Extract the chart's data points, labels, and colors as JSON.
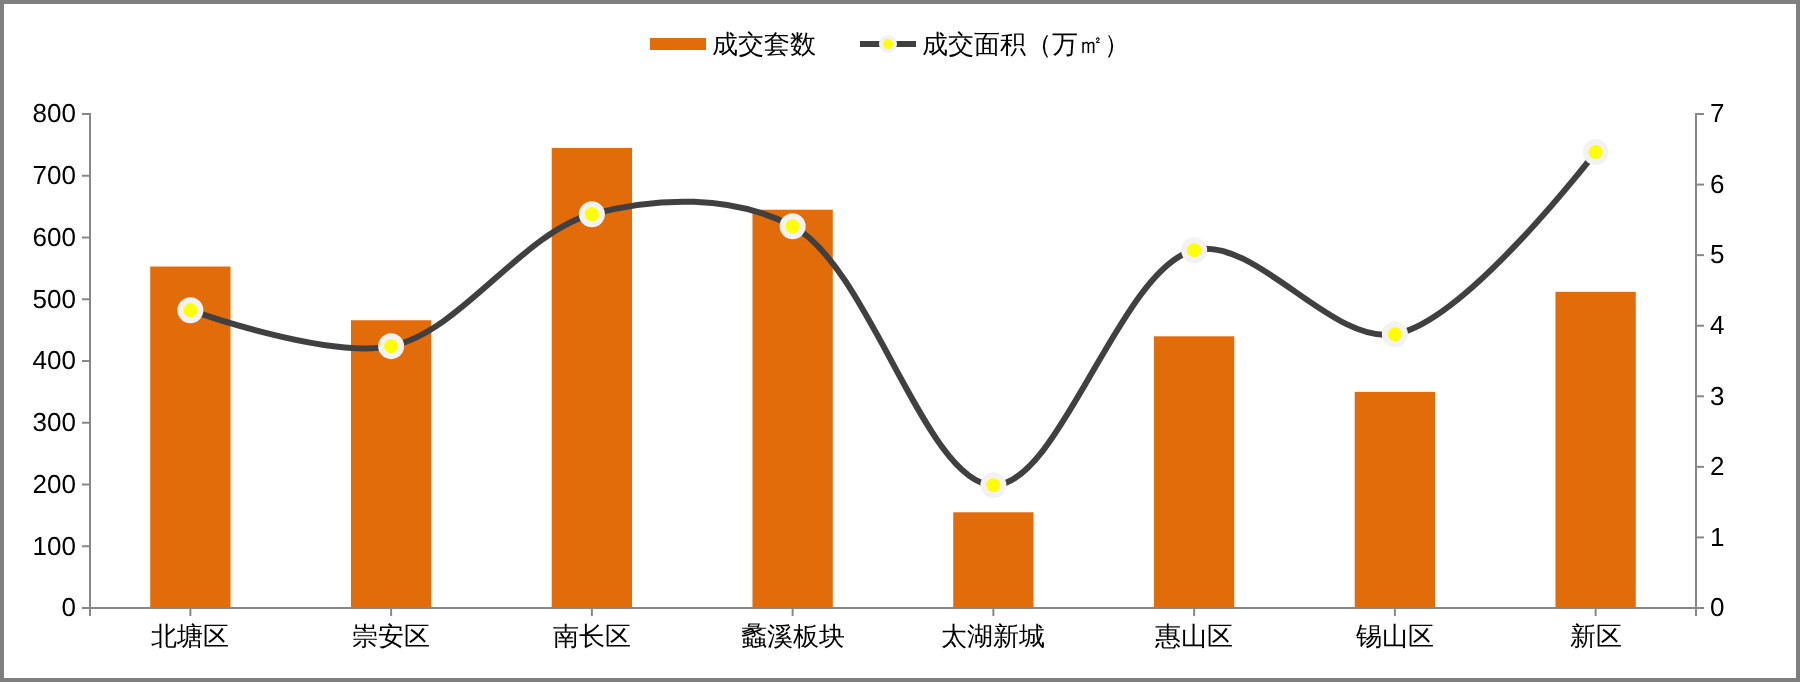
{
  "chart_data": {
    "type": "bar",
    "categories": [
      "北塘区",
      "崇安区",
      "南长区",
      "蠡溪板块",
      "太湖新城",
      "惠山区",
      "锡山区",
      "新区"
    ],
    "series": [
      {
        "name": "成交套数",
        "color": "#e36c0a",
        "values": [
          553,
          466,
          745,
          645,
          155,
          440,
          350,
          512
        ]
      },
      {
        "name": "成交面积（万㎡）",
        "type": "line",
        "axis": "y2",
        "color": "#404040",
        "marker": "circle",
        "line_style": "solid",
        "values": [
          4.22,
          3.71,
          5.58,
          5.41,
          1.74,
          5.07,
          3.88,
          6.46
        ]
      }
    ],
    "ylim": [
      0,
      800
    ],
    "yticks": [
      0,
      100,
      200,
      300,
      400,
      500,
      600,
      700,
      800
    ],
    "y2lim": [
      0,
      7
    ],
    "y2ticks": [
      0,
      1,
      2,
      3,
      4,
      5,
      6,
      7
    ],
    "legend": "top",
    "grid": false
  }
}
